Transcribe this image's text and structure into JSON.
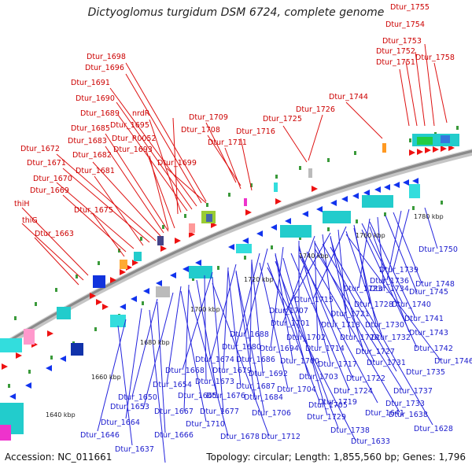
{
  "title": "Dictyoglomus turgidum DSM 6724, complete genome",
  "footer": {
    "accession": "Accession: NC_011661",
    "topology": "Topology: circular; Length: 1,855,560 bp; Genes: 1,796"
  },
  "ticks": [
    "1640 kbp",
    "1660 kbp",
    "1680 kbp",
    "1700 kbp",
    "1720 kbp",
    "1740 kbp",
    "1760 kbp",
    "1780 kbp"
  ],
  "top_labels": [
    {
      "text": "Dtur_1755",
      "highlight": false
    },
    {
      "text": "Dtur_1754",
      "highlight": false
    },
    {
      "text": "Dtur_1753",
      "highlight": false
    },
    {
      "text": "Dtur_1752",
      "highlight": false
    },
    {
      "text": "Dtur_1751",
      "highlight": false
    },
    {
      "text": "Dtur_1758",
      "highlight": false
    },
    {
      "text": "Dtur_1698",
      "highlight": false
    },
    {
      "text": "Dtur_1696",
      "highlight": false
    },
    {
      "text": "Dtur_1691",
      "highlight": false
    },
    {
      "text": "Dtur_1690",
      "highlight": false
    },
    {
      "text": "Dtur_1744",
      "highlight": false
    },
    {
      "text": "Dtur_1726",
      "highlight": false
    },
    {
      "text": "Dtur_1689",
      "highlight": false
    },
    {
      "text": "nrdR",
      "highlight": false
    },
    {
      "text": "Dtur_1709",
      "highlight": false
    },
    {
      "text": "Dtur_1725",
      "highlight": false
    },
    {
      "text": "Dtur_1685",
      "highlight": false
    },
    {
      "text": "Dtur_1695",
      "highlight": false
    },
    {
      "text": "Dtur_1708",
      "highlight": false
    },
    {
      "text": "Dtur_1716",
      "highlight": false
    },
    {
      "text": "Dtur_1683",
      "highlight": false
    },
    {
      "text": "Dtur_R0052",
      "highlight": true
    },
    {
      "text": "Dtur_1711",
      "highlight": false
    },
    {
      "text": "Dtur_1672",
      "highlight": false
    },
    {
      "text": "Dtur_1693",
      "highlight": false
    },
    {
      "text": "Dtur_1682",
      "highlight": false
    },
    {
      "text": "Dtur_1671",
      "highlight": false
    },
    {
      "text": "Dtur_1699",
      "highlight": false
    },
    {
      "text": "Dtur_1681",
      "highlight": false
    },
    {
      "text": "Dtur_1670",
      "highlight": false
    },
    {
      "text": "Dtur_1669",
      "highlight": false
    },
    {
      "text": "thiH",
      "highlight": false
    },
    {
      "text": "Dtur_1675",
      "highlight": false
    },
    {
      "text": "thiG",
      "highlight": false
    },
    {
      "text": "Dtur_1663",
      "highlight": false
    }
  ],
  "bottom_labels": [
    "Dtur_1750",
    "Dtur_1739",
    "Dtur_1736",
    "Dtur_1748",
    "Dtur_1723",
    "Dtur_1734",
    "Dtur_1745",
    "Dtur_1715",
    "Dtur_1728",
    "Dtur_1740",
    "Dtur_1707",
    "Dtur_1721",
    "Dtur_1741",
    "Dtur_1701",
    "Dtur_1718",
    "Dtur_1730",
    "Dtur_1743",
    "Dtur_1688",
    "Dtur_1702",
    "Dtur_1720",
    "Dtur_1732",
    "Dtur_1680",
    "Dtur_1694",
    "Dtur_1714",
    "Dtur_1727",
    "Dtur_1742",
    "Dtur_1674",
    "Dtur_1686",
    "Dtur_1700",
    "Dtur_1717",
    "Dtur_1731",
    "Dtur_1746",
    "Dtur_1668",
    "Dtur_1679",
    "Dtur_1692",
    "Dtur_1703",
    "Dtur_1722",
    "Dtur_1735",
    "Dtur_1673",
    "Dtur_1687",
    "Dtur_1704",
    "Dtur_1724",
    "Dtur_1737",
    "Dtur_1654",
    "Dtur_1676",
    "Dtur_1719",
    "Dtur_1733",
    "Dtur_1650",
    "Dtur_1665",
    "Dtur_1684",
    "Dtur_1705",
    "Dtur_1641",
    "Dtur_1653",
    "Dtur_1667",
    "Dtur_1677",
    "Dtur_1706",
    "Dtur_1729",
    "Dtur_1638",
    "Dtur_1664",
    "Dtur_1710",
    "Dtur_1738",
    "Dtur_1628",
    "Dtur_1646",
    "Dtur_1666",
    "Dtur_1678",
    "Dtur_1712",
    "Dtur_1633",
    "Dtur_1637"
  ],
  "colors": {
    "forward_gene": "#ee1111",
    "reverse_gene": "#1133ee",
    "backbone": "#8a8a8a",
    "top_label": "#cc0000",
    "bottom_label": "#1a1acc",
    "rna_label": "#ff99cc"
  }
}
